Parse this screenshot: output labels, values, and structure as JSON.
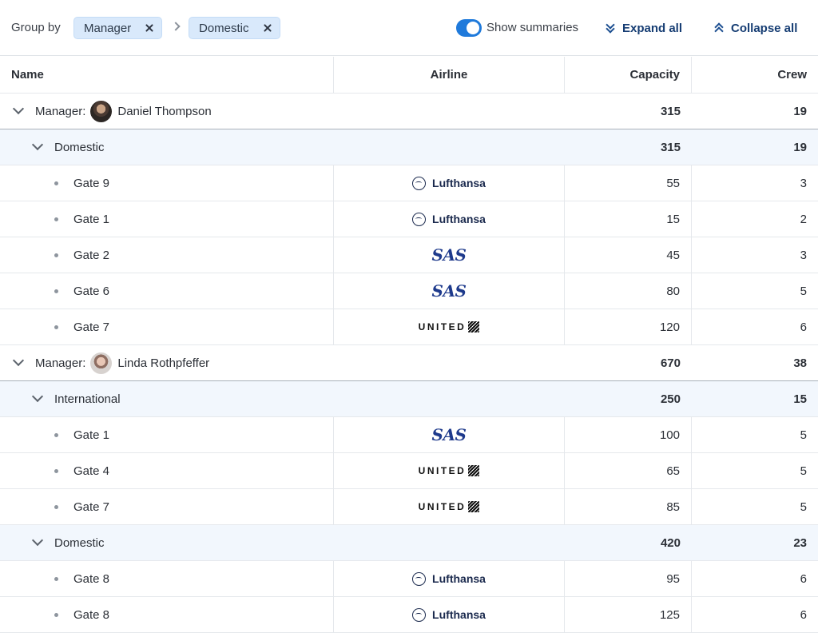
{
  "toolbar": {
    "group_by_label": "Group by",
    "chips": [
      {
        "label": "Manager"
      },
      {
        "label": "Domestic"
      }
    ],
    "show_summaries_label": "Show summaries",
    "show_summaries_on": true,
    "expand_all_label": "Expand all",
    "collapse_all_label": "Collapse all"
  },
  "columns": {
    "name": "Name",
    "airline": "Airline",
    "capacity": "Capacity",
    "crew": "Crew"
  },
  "colors": {
    "accent": "#1f7adb",
    "chip_bg": "#d9e9fb",
    "subgroup_bg": "#f2f7fd"
  },
  "rows": [
    {
      "type": "manager",
      "prefix": "Manager:",
      "name": "Daniel Thompson",
      "avatar": "male",
      "capacity": "315",
      "crew": "19"
    },
    {
      "type": "group",
      "name": "Domestic",
      "capacity": "315",
      "crew": "19"
    },
    {
      "type": "leaf",
      "name": "Gate 9",
      "airline": "Lufthansa",
      "capacity": "55",
      "crew": "3"
    },
    {
      "type": "leaf",
      "name": "Gate 1",
      "airline": "Lufthansa",
      "capacity": "15",
      "crew": "2"
    },
    {
      "type": "leaf",
      "name": "Gate 2",
      "airline": "SAS",
      "capacity": "45",
      "crew": "3"
    },
    {
      "type": "leaf",
      "name": "Gate 6",
      "airline": "SAS",
      "capacity": "80",
      "crew": "5"
    },
    {
      "type": "leaf",
      "name": "Gate 7",
      "airline": "UNITED",
      "capacity": "120",
      "crew": "6"
    },
    {
      "type": "manager",
      "prefix": "Manager:",
      "name": "Linda Rothpfeffer",
      "avatar": "female",
      "capacity": "670",
      "crew": "38"
    },
    {
      "type": "group",
      "name": "International",
      "capacity": "250",
      "crew": "15"
    },
    {
      "type": "leaf",
      "name": "Gate 1",
      "airline": "SAS",
      "capacity": "100",
      "crew": "5"
    },
    {
      "type": "leaf",
      "name": "Gate 4",
      "airline": "UNITED",
      "capacity": "65",
      "crew": "5"
    },
    {
      "type": "leaf",
      "name": "Gate 7",
      "airline": "UNITED",
      "capacity": "85",
      "crew": "5"
    },
    {
      "type": "group",
      "name": "Domestic",
      "capacity": "420",
      "crew": "23"
    },
    {
      "type": "leaf",
      "name": "Gate 8",
      "airline": "Lufthansa",
      "capacity": "95",
      "crew": "6"
    },
    {
      "type": "leaf",
      "name": "Gate 8",
      "airline": "Lufthansa",
      "capacity": "125",
      "crew": "6"
    }
  ]
}
